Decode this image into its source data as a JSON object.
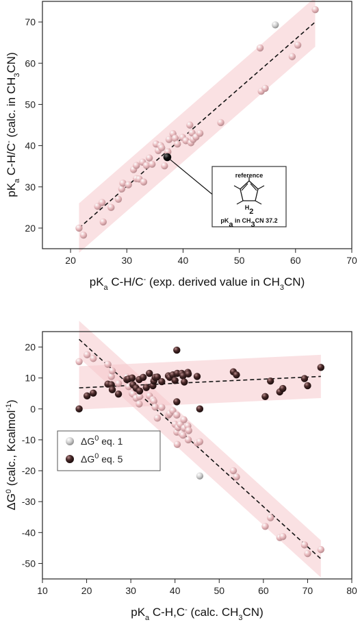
{
  "chart_data": [
    {
      "type": "scatter",
      "xlabel": "pKa C-H/C- (exp. derived value in CH3CN)",
      "ylabel": "pKa C-H/C- (calc. in CH3CN)",
      "xlim": [
        15,
        70
      ],
      "ylim": [
        15,
        75
      ],
      "xticks": [
        20,
        30,
        40,
        50,
        60,
        70
      ],
      "yticks": [
        20,
        30,
        40,
        50,
        60,
        70
      ],
      "xtick_labels": [
        "20",
        "30",
        "40",
        "50",
        "60",
        "70"
      ],
      "ytick_labels": [
        "20",
        "30",
        "40",
        "50",
        "60",
        "70"
      ],
      "fit_line": {
        "x": [
          21.5,
          63.5
        ],
        "y": [
          20,
          70
        ]
      },
      "band_halfwidth": 6,
      "series": [
        {
          "points": [
            [
              21.5,
              20
            ],
            [
              22.3,
              18.3
            ],
            [
              24.8,
              25.3
            ],
            [
              25.6,
              26.2
            ],
            [
              25.8,
              21.5
            ],
            [
              27.2,
              25
            ],
            [
              28.5,
              27
            ],
            [
              29.1,
              29.5
            ],
            [
              29.3,
              30.9
            ],
            [
              30.3,
              30.5
            ],
            [
              31.2,
              34.2
            ],
            [
              31.7,
              35.2
            ],
            [
              31.7,
              32
            ],
            [
              32.2,
              31.9
            ],
            [
              32.8,
              36
            ],
            [
              33,
              31.2
            ],
            [
              33.5,
              35.2
            ],
            [
              34,
              37
            ],
            [
              34.5,
              35.5
            ],
            [
              35.2,
              40.4
            ],
            [
              35.6,
              38.8
            ],
            [
              36,
              40
            ],
            [
              36.2,
              39.5
            ],
            [
              36.7,
              35.1
            ],
            [
              37.3,
              38.5
            ],
            [
              37.5,
              41.5
            ],
            [
              38.2,
              42.9
            ],
            [
              38.6,
              41.8
            ],
            [
              39,
              40.4
            ],
            [
              39.9,
              42
            ],
            [
              40.5,
              41.2
            ],
            [
              41.2,
              45
            ],
            [
              41.4,
              40.7
            ],
            [
              41.6,
              43.1
            ],
            [
              41.8,
              41.5
            ],
            [
              42.3,
              42.1
            ],
            [
              43,
              43
            ],
            [
              46.7,
              45.6
            ],
            [
              53.7,
              63.7
            ],
            [
              53.9,
              53.2
            ],
            [
              54.6,
              53.9
            ],
            [
              59.4,
              61.6
            ],
            [
              60.4,
              64.4
            ],
            [
              63.5,
              73
            ]
          ]
        }
      ],
      "highlight_point": [
        56.4,
        69.3
      ],
      "reference_point": [
        37.2,
        37.2
      ],
      "callout": {
        "title": "reference",
        "molecule_label": "H2",
        "caption": "pKa in CH3CN 37.2"
      }
    },
    {
      "type": "scatter",
      "xlabel": "pKa C-H,C- (calc. CH3CN)",
      "ylabel": "ΔG0 (calc., Kcalmol-1)",
      "xlim": [
        10,
        80
      ],
      "ylim": [
        -55,
        25
      ],
      "xticks": [
        10,
        20,
        30,
        40,
        50,
        60,
        70,
        80
      ],
      "yticks": [
        20,
        10,
        0,
        -10,
        -20,
        -30,
        -40,
        -50
      ],
      "xtick_labels": [
        "10",
        "20",
        "30",
        "40",
        "50",
        "60",
        "70",
        "80"
      ],
      "ytick_labels": [
        "20",
        "10",
        "0",
        "-10",
        "-20",
        "-30",
        "-40",
        "-50"
      ],
      "legend_position": "middle-left",
      "series": [
        {
          "name": "ΔG0 eq. 1",
          "color": "#e8b0b5",
          "fit_line": {
            "x": [
              18.3,
              73
            ],
            "y": [
              22.5,
              -48.5
            ]
          },
          "band_halfwidth": 6,
          "points": [
            [
              18.3,
              15.3
            ],
            [
              20.1,
              17.5
            ],
            [
              21.5,
              16.3
            ],
            [
              24.8,
              14.4
            ],
            [
              25.6,
              10.5
            ],
            [
              25.8,
              12.3
            ],
            [
              27.2,
              8.2
            ],
            [
              29.1,
              10.3
            ],
            [
              29.5,
              7.2
            ],
            [
              30.3,
              5
            ],
            [
              30.5,
              4.8
            ],
            [
              31.2,
              3.5
            ],
            [
              31.9,
              1.6
            ],
            [
              32,
              4
            ],
            [
              34.2,
              4.2
            ],
            [
              35,
              3
            ],
            [
              35.2,
              2.5
            ],
            [
              35.5,
              0.6
            ],
            [
              36,
              -3
            ],
            [
              37,
              0.5
            ],
            [
              38.5,
              -2
            ],
            [
              38.8,
              -1.5
            ],
            [
              39.5,
              -0.6
            ],
            [
              40,
              -5
            ],
            [
              40.4,
              -2
            ],
            [
              40.4,
              -7.5
            ],
            [
              40.5,
              -11.5
            ],
            [
              40.7,
              -6
            ],
            [
              41.2,
              -5
            ],
            [
              41.5,
              -8
            ],
            [
              41.8,
              -8.5
            ],
            [
              42,
              -3.5
            ],
            [
              42.1,
              -6.2
            ],
            [
              42.9,
              -5.5
            ],
            [
              43,
              -10
            ],
            [
              43.1,
              -7
            ],
            [
              45,
              -11
            ],
            [
              45.6,
              -10.6
            ],
            [
              53.2,
              -20
            ],
            [
              53.9,
              -22
            ],
            [
              60.4,
              -38
            ],
            [
              61.6,
              -35.2
            ],
            [
              63.7,
              -41.6
            ],
            [
              64.4,
              -41.3
            ],
            [
              69.3,
              -44
            ],
            [
              70,
              -46.8
            ],
            [
              73,
              -45.5
            ]
          ]
        },
        {
          "name": "ΔG0 eq. 5",
          "color": "#4a2a2a",
          "fit_line": {
            "x": [
              18.3,
              73
            ],
            "y": [
              6.8,
              10.5
            ]
          },
          "band_halfwidth": 7,
          "points": [
            [
              18.3,
              0
            ],
            [
              20.1,
              4.2
            ],
            [
              21.5,
              5.1
            ],
            [
              24.8,
              8
            ],
            [
              25.6,
              7.8
            ],
            [
              25.8,
              6.2
            ],
            [
              27.2,
              4.8
            ],
            [
              29.1,
              9.5
            ],
            [
              29.5,
              9.7
            ],
            [
              30.3,
              10
            ],
            [
              30.5,
              7.8
            ],
            [
              31.2,
              6.7
            ],
            [
              31.9,
              9.5
            ],
            [
              32,
              5.8
            ],
            [
              32.8,
              10.2
            ],
            [
              33.5,
              6.9
            ],
            [
              34.2,
              11.5
            ],
            [
              35,
              7.5
            ],
            [
              35.2,
              9
            ],
            [
              35.5,
              10.2
            ],
            [
              36,
              10.3
            ],
            [
              37,
              8.8
            ],
            [
              38.5,
              10.7
            ],
            [
              38.8,
              10.2
            ],
            [
              39.5,
              11
            ],
            [
              40,
              9.2
            ],
            [
              40.4,
              19
            ],
            [
              40.4,
              2.3
            ],
            [
              40.5,
              11.5
            ],
            [
              41.5,
              11.5
            ],
            [
              41.8,
              10.7
            ],
            [
              42.1,
              8.7
            ],
            [
              42.9,
              11.8
            ],
            [
              43,
              11.3
            ],
            [
              45,
              10.5
            ],
            [
              45.6,
              0
            ],
            [
              53.2,
              12
            ],
            [
              53.9,
              11
            ],
            [
              60.4,
              4
            ],
            [
              61.6,
              9
            ],
            [
              63.7,
              5.5
            ],
            [
              64.4,
              6.6
            ],
            [
              69.3,
              9.8
            ],
            [
              70,
              7.5
            ],
            [
              73,
              13.4
            ]
          ]
        }
      ],
      "extra_points": [
        [
          45.6,
          -21.7
        ]
      ]
    }
  ]
}
